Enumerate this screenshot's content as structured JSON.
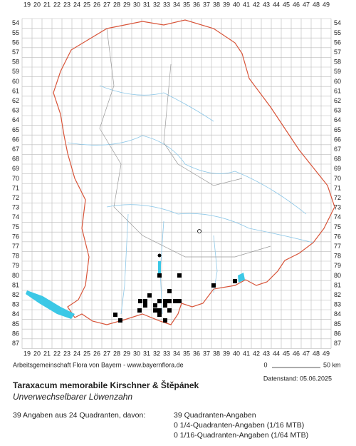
{
  "map": {
    "x_labels": [
      19,
      20,
      21,
      22,
      23,
      24,
      25,
      26,
      27,
      28,
      29,
      30,
      31,
      32,
      33,
      34,
      35,
      36,
      37,
      38,
      39,
      40,
      41,
      42,
      43,
      44,
      45,
      46,
      47,
      48,
      49
    ],
    "y_labels": [
      54,
      55,
      56,
      57,
      58,
      59,
      60,
      61,
      62,
      63,
      64,
      65,
      66,
      67,
      68,
      69,
      70,
      71,
      72,
      73,
      74,
      75,
      76,
      77,
      78,
      79,
      80,
      81,
      82,
      83,
      84,
      85,
      86,
      87
    ],
    "credit": "Arbeitsgemeinschaft Flora von Bayern - www.bayernflora.de",
    "scale_start": "0",
    "scale_end": "50 km",
    "date": "Datenstand: 05.06.2025"
  },
  "species": {
    "name": "Taraxacum memorabile Kirschner & Štěpánek",
    "common_name": "Unverwechselbarer Löwenzahn"
  },
  "summary": {
    "total": "39 Angaben aus 24 Quadranten, davon:",
    "details": [
      "39 Quadranten-Angaben",
      "0 1/4-Quadranten-Angaben (1/16 MTB)",
      "0 1/16-Quadranten-Angaben (1/64 MTB)"
    ]
  }
}
